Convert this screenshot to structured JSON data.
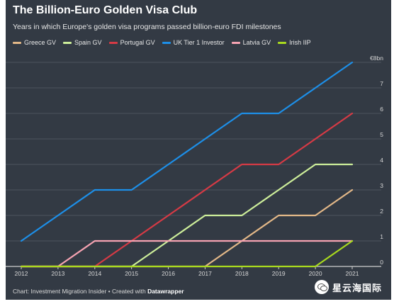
{
  "chart_data": {
    "type": "line",
    "title": "The Billion-Euro Golden Visa Club",
    "subtitle": "Years in which Europe's golden visa programs passed billion-euro FDI milestones",
    "x": [
      2012,
      2013,
      2014,
      2015,
      2016,
      2017,
      2018,
      2019,
      2020,
      2021
    ],
    "x_tick_labels": [
      "2012",
      "2013",
      "2014",
      "2015",
      "2016",
      "2017",
      "2018",
      "2019",
      "2020",
      "2021"
    ],
    "y_tick_labels": [
      "0",
      "1",
      "2",
      "3",
      "4",
      "5",
      "6",
      "7",
      "€8bn"
    ],
    "ylim": [
      0,
      8
    ],
    "grid": true,
    "legend_position": "top-left",
    "series": [
      {
        "name": "Greece GV",
        "color": "#e3b888",
        "values": [
          0,
          0,
          0,
          0,
          0,
          0,
          1,
          2,
          2,
          3
        ]
      },
      {
        "name": "Spain GV",
        "color": "#cdee9a",
        "values": [
          0,
          0,
          0,
          0,
          1,
          2,
          2,
          3,
          4,
          4
        ]
      },
      {
        "name": "Portugal GV",
        "color": "#d63a45",
        "values": [
          0,
          0,
          0,
          1,
          2,
          3,
          4,
          4,
          5,
          6
        ]
      },
      {
        "name": "UK Tier 1 Investor",
        "color": "#1d8fe8",
        "values": [
          1,
          2,
          3,
          3,
          4,
          5,
          6,
          6,
          7,
          8
        ]
      },
      {
        "name": "Latvia GV",
        "color": "#f6a3b2",
        "values": [
          0,
          0,
          1,
          1,
          1,
          1,
          1,
          1,
          1,
          1
        ]
      },
      {
        "name": "Irish IIP",
        "color": "#a9da1e",
        "values": [
          0,
          0,
          0,
          0,
          0,
          0,
          0,
          0,
          0,
          1
        ]
      }
    ],
    "footer": {
      "source_text": "Chart: Investment Migration Insider • Created with ",
      "tool_name": "Datawrapper"
    }
  },
  "watermark": {
    "text": "星云海国际",
    "icon": "wechat-icon"
  },
  "colors": {
    "background": "#333a44",
    "grid": "#4d545e",
    "axis": "#cfcfcf"
  }
}
